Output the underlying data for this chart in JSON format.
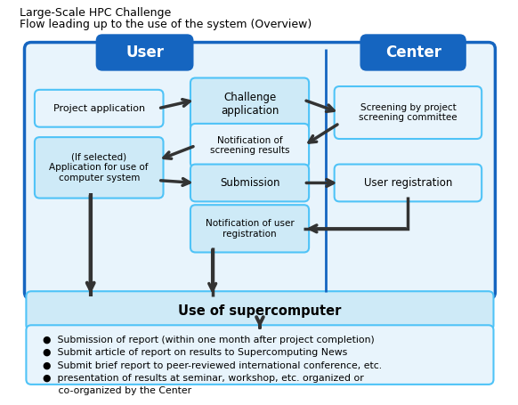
{
  "title1": "Large-Scale HPC Challenge",
  "title2": "Flow leading up to the use of the system (Overview)",
  "user_label": "User",
  "center_label": "Center",
  "blue_dark": "#1565C0",
  "blue_mid": "#4FC3F7",
  "blue_light": "#CEEAF7",
  "blue_lighter": "#E8F4FC",
  "white": "#FFFFFF",
  "arrow_color": "#333333",
  "text_color": "#000000",
  "bullet_lines": [
    "●  Submission of report (within one month after project completion)",
    "●  Submit article of report on results to Supercomputing News",
    "●  Submit brief report to peer-reviewed international conference, etc.",
    "●  presentation of results at seminar, workshop, etc. organized or",
    "     co-organized by the Center"
  ]
}
